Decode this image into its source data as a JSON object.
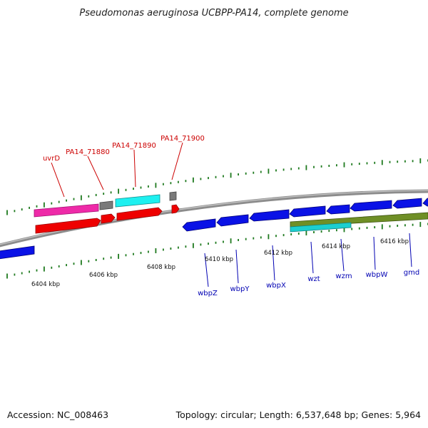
{
  "title": "Pseudomonas aeruginosa UCBPP-PA14, complete genome",
  "footer": {
    "accession": "Accession: NC_008463",
    "summary": "Topology: circular; Length: 6,537,648 bp; Genes: 5,964"
  },
  "colors": {
    "backbone": "#8c8c8c",
    "tick": "#1f7a1f",
    "forward_label": "#cc0000",
    "reverse_label": "#0000b3",
    "blue_gene": "#0a12e6",
    "red_gene": "#ee0000",
    "magenta_gene": "#ee2aa8",
    "cyan_gene": "#1ef0f0",
    "gray_gene": "#7a7a7a",
    "olive_gene": "#6f8f26",
    "teal_gene": "#1ccfcf"
  },
  "scale_labels": [
    "6404 kbp",
    "6406 kbp",
    "6408 kbp",
    "6410 kbp",
    "6412 kbp",
    "6414 kbp",
    "6416 kbp"
  ],
  "gene_labels": {
    "forward": [
      "uvrD",
      "PA14_71880",
      "PA14_71890",
      "PA14_71900"
    ],
    "reverse": [
      "wbpZ",
      "wbpY",
      "wbpX",
      "wzt",
      "wzm",
      "wbpW",
      "gmd"
    ]
  }
}
